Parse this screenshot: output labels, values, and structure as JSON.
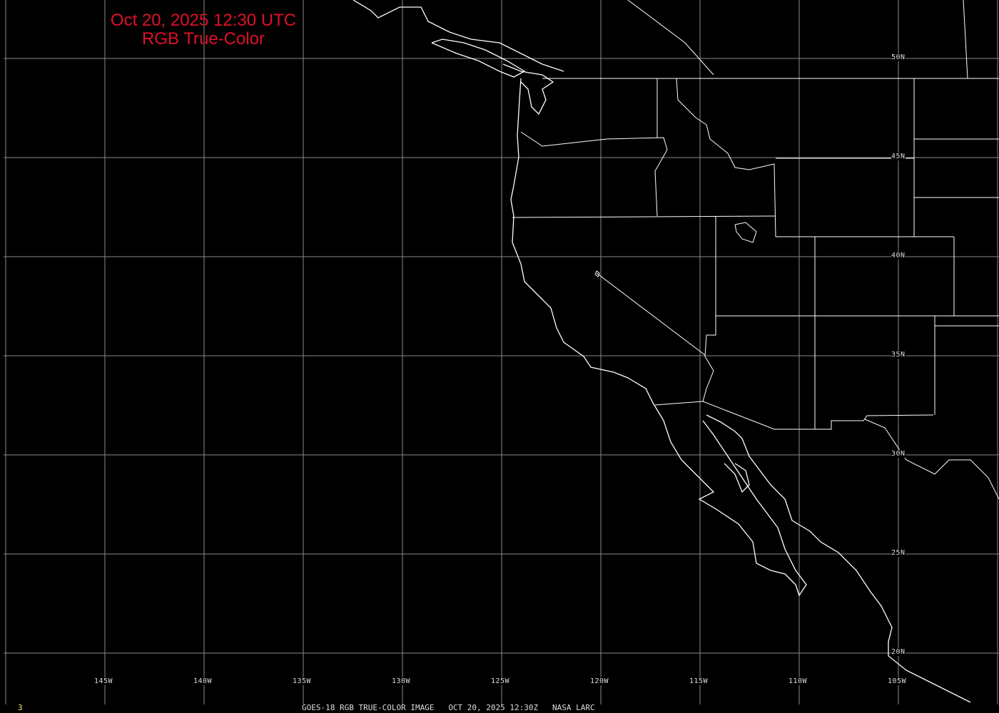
{
  "title": {
    "line1": "Oct 20, 2025 12:30 UTC",
    "line2": "RGB True-Color",
    "color": "#e0102a"
  },
  "latitude_labels": [
    "50N",
    "45N",
    "40N",
    "35N",
    "30N",
    "25N",
    "20N"
  ],
  "longitude_labels": [
    "145W",
    "140W",
    "135W",
    "130W",
    "125W",
    "120W",
    "115W",
    "110W",
    "105W"
  ],
  "caption": {
    "satellite": "GOES-18 RGB TRUE-COLOR IMAGE",
    "datetime": "OCT 20, 2025 12:30Z",
    "credit": "NASA LARC"
  },
  "frame_number": "3",
  "colors": {
    "background": "#000000",
    "grid": "#8a8a8a",
    "coastline": "#ffffff"
  }
}
